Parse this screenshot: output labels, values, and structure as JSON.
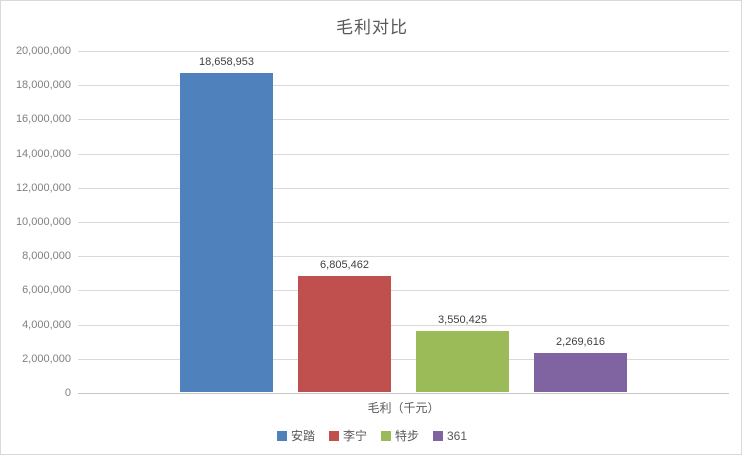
{
  "chart_data": {
    "type": "bar",
    "title": "毛利对比",
    "xlabel": "毛利（千元）",
    "ylabel": "",
    "ylim": [
      0,
      20000000
    ],
    "ytick_step": 2000000,
    "ytick_labels": [
      "0",
      "2,000,000",
      "4,000,000",
      "6,000,000",
      "8,000,000",
      "10,000,000",
      "12,000,000",
      "14,000,000",
      "16,000,000",
      "18,000,000",
      "20,000,000"
    ],
    "grid": true,
    "legend_position": "bottom",
    "categories": [
      "毛利（千元）"
    ],
    "series": [
      {
        "name": "安踏",
        "value": 18658953,
        "data_label": "18,658,953",
        "color": "#4F81BD"
      },
      {
        "name": "李宁",
        "value": 6805462,
        "data_label": "6,805,462",
        "color": "#C0504D"
      },
      {
        "name": "特步",
        "value": 3550425,
        "data_label": "3,550,425",
        "color": "#9BBB59"
      },
      {
        "name": "361",
        "value": 2269616,
        "data_label": "2,269,616",
        "color": "#8064A2"
      }
    ]
  }
}
